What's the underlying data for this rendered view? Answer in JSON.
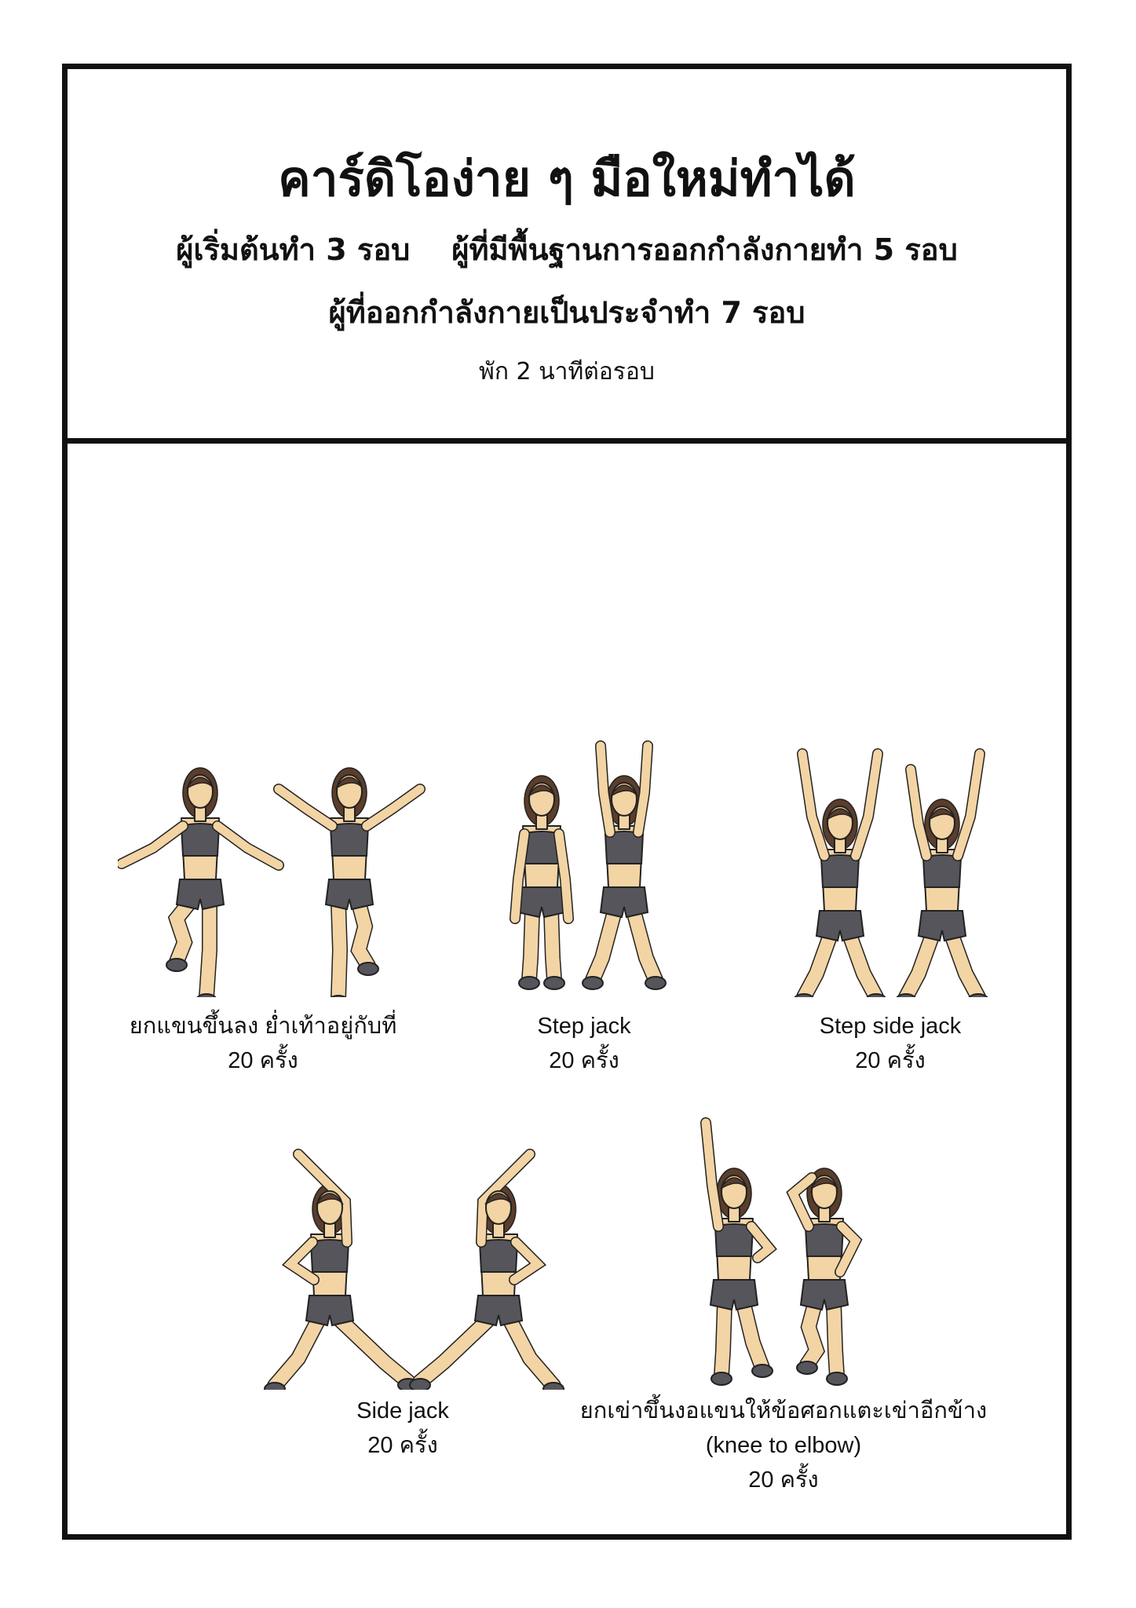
{
  "header": {
    "title": "คาร์ดิโอง่าย ๆ มือใหม่ทำได้",
    "line1": "ผู้เริ่มต้นทำ 3 รอบ    ผู้ที่มีพื้นฐานการออกกำลังกายทำ 5 รอบ",
    "line2": "ผู้ที่ออกกำลังกายเป็นประจำทำ 7 รอบ",
    "rest": "พัก 2 นาทีต่อรอบ"
  },
  "exercises": [
    {
      "name": "ยกแขนขึ้นลง ย่ำเท้าอยู่กับที่",
      "reps": "20 ครั้ง"
    },
    {
      "name": "Step jack",
      "reps": "20 ครั้ง"
    },
    {
      "name": "Step side jack",
      "reps": "20 ครั้ง"
    },
    {
      "name": "Side jack",
      "reps": "20 ครั้ง"
    },
    {
      "name": "ยกเข่าขึ้นงอแขนให้ข้อศอกแตะเข่าอีกข้าง",
      "name2": "(knee to elbow)",
      "reps": "20 ครั้ง"
    }
  ],
  "colors": {
    "skin": "#f3d4a4",
    "outfit": "#55555b",
    "hair": "#5a3d2b",
    "border": "#111111"
  }
}
